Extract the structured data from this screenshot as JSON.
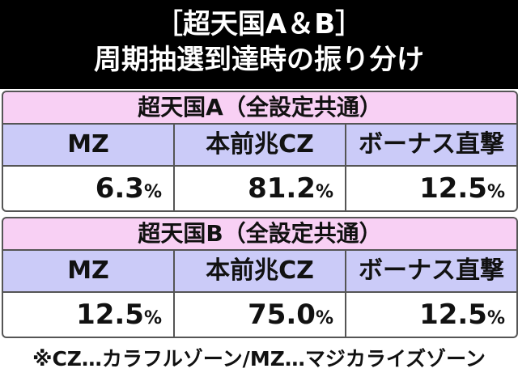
{
  "header": {
    "title": "［超天国A＆B］",
    "subtitle": "周期抽選到達時の振り分け"
  },
  "unit": "%",
  "tables": [
    {
      "title": "超天国A（全設定共通）",
      "columns": [
        "MZ",
        "本前兆CZ",
        "ボーナス直撃"
      ],
      "values": [
        "6.3",
        "81.2",
        "12.5"
      ]
    },
    {
      "title": "超天国B（全設定共通）",
      "columns": [
        "MZ",
        "本前兆CZ",
        "ボーナス直撃"
      ],
      "values": [
        "12.5",
        "75.0",
        "12.5"
      ]
    }
  ],
  "footnote": "※CZ…カラフルゾーン/MZ…マジカライズゾーン"
}
